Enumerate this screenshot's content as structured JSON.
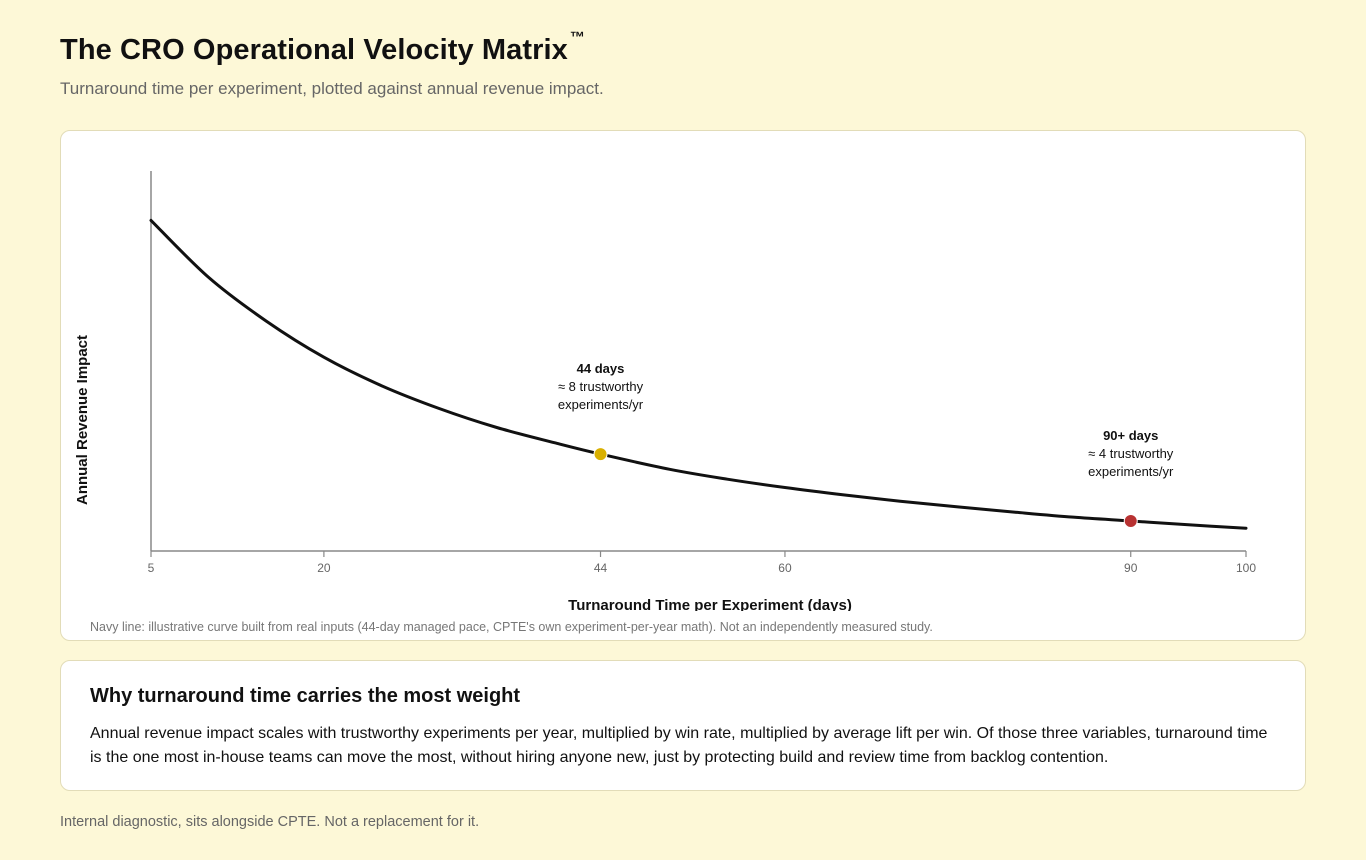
{
  "header": {
    "title": "The CRO Operational Velocity Matrix",
    "trademark": "™",
    "subtitle": "Turnaround time per experiment, plotted against annual revenue impact."
  },
  "chart_data": {
    "type": "line",
    "title": "",
    "xlabel": "Turnaround Time per Experiment (days)",
    "ylabel": "Annual Revenue Impact",
    "xlim": [
      5,
      100
    ],
    "ylim": [
      0,
      100
    ],
    "x_ticks": [
      5,
      20,
      44,
      60,
      90,
      100
    ],
    "y_ticks": [],
    "grid": false,
    "series": [
      {
        "color": "#111111",
        "x": [
          5,
          10,
          15,
          20,
          25,
          30,
          35,
          40,
          44,
          50,
          55,
          60,
          65,
          70,
          75,
          80,
          85,
          90,
          95,
          100
        ],
        "y": [
          87,
          72,
          60.5,
          51,
          43.5,
          37.5,
          32.5,
          28.5,
          25.5,
          21.5,
          18.9,
          16.7,
          14.8,
          13.1,
          11.6,
          10.2,
          8.9,
          7.9,
          6.9,
          6
        ]
      }
    ],
    "highlights": [
      {
        "x": 44,
        "y": 25.5,
        "color": "#d9b000",
        "label": "44 days",
        "note_line1": "≈ 8 trustworthy",
        "note_line2": "experiments/yr"
      },
      {
        "x": 90,
        "y": 7.9,
        "color": "#b83232",
        "label": "90+ days",
        "note_line1": "≈ 4 trustworthy",
        "note_line2": "experiments/yr"
      }
    ],
    "footnote": "Navy line: illustrative curve built from real inputs (44-day managed pace, CPTE's own experiment-per-year math). Not an independently measured study."
  },
  "info": {
    "title": "Why turnaround time carries the most weight",
    "body": "Annual revenue impact scales with trustworthy experiments per year, multiplied by win rate, multiplied by average lift per win. Of those three variables, turnaround time is the one most in-house teams can move the most, without hiring anyone new, just by protecting build and review time from backlog contention."
  },
  "footer": "Internal diagnostic, sits alongside CPTE. Not a replacement for it."
}
